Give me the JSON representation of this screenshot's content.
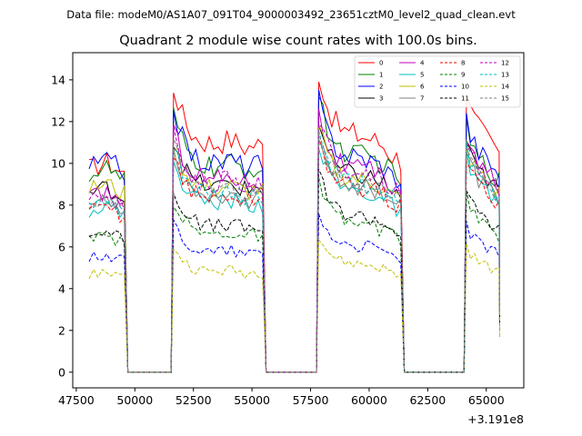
{
  "chart_data": {
    "type": "line",
    "suptitle": "Data file: modeM0/AS1A07_091T04_9000003492_23651cztM0_level2_quad_clean.evt",
    "title": "Quadrant 2 module wise count rates with 100.0s bins.",
    "xlabel": "",
    "ylabel": "",
    "x_offset_label": "+3.191e8",
    "xlim": [
      47350,
      66600
    ],
    "ylim": [
      -0.75,
      15.3
    ],
    "xticks": [
      47500,
      50000,
      52500,
      55000,
      57500,
      60000,
      62500,
      65000
    ],
    "xtick_labels": [
      "47500",
      "50000",
      "52500",
      "55000",
      "57500",
      "60000",
      "62500",
      "65000"
    ],
    "yticks": [
      0,
      2,
      4,
      6,
      8,
      10,
      12,
      14
    ],
    "ytick_labels": [
      "0",
      "2",
      "4",
      "6",
      "8",
      "10",
      "12",
      "14"
    ],
    "legend_position": "top-right",
    "segments": [
      [
        48050,
        49550
      ],
      [
        51650,
        55450
      ],
      [
        57850,
        61350
      ],
      [
        64150,
        65550
      ]
    ],
    "segment_profiles": [
      [
        1.0,
        1.0,
        1.01,
        1.02,
        1.03,
        1.01,
        1.0,
        0.98,
        0.97
      ],
      [
        1.18,
        1.12,
        1.06,
        1.02,
        0.99,
        0.97,
        0.96,
        0.95,
        0.95,
        0.94,
        0.95,
        0.95,
        0.96,
        0.96,
        0.95,
        0.94,
        0.93,
        0.93,
        0.94,
        0.94,
        0.93
      ],
      [
        1.22,
        1.14,
        1.08,
        1.04,
        1.01,
        0.99,
        0.98,
        0.97,
        0.97,
        0.96,
        0.96,
        0.95,
        0.95,
        0.94,
        0.93,
        0.92,
        0.9,
        0.88,
        0.87,
        0.86
      ],
      [
        1.15,
        1.07,
        1.03,
        1.0,
        0.98,
        0.96,
        0.94,
        0.92,
        0.9
      ]
    ],
    "series": [
      {
        "name": "0",
        "color": "#ff0000",
        "dash": false,
        "levels": [
          9.8,
          11.6,
          11.8,
          11.7
        ]
      },
      {
        "name": "1",
        "color": "#008000",
        "dash": false,
        "levels": [
          9.5,
          10.4,
          10.8,
          10.2
        ]
      },
      {
        "name": "2",
        "color": "#0000ff",
        "dash": false,
        "levels": [
          9.9,
          10.6,
          10.7,
          10.6
        ]
      },
      {
        "name": "3",
        "color": "#000000",
        "dash": false,
        "levels": [
          8.6,
          9.4,
          9.8,
          9.6
        ]
      },
      {
        "name": "4",
        "color": "#bf00bf",
        "dash": false,
        "levels": [
          8.4,
          9.8,
          10.1,
          9.9
        ]
      },
      {
        "name": "5",
        "color": "#00bfbf",
        "dash": false,
        "levels": [
          7.8,
          8.6,
          9.0,
          8.9
        ]
      },
      {
        "name": "6",
        "color": "#bfbf00",
        "dash": false,
        "levels": [
          8.8,
          9.3,
          9.6,
          9.5
        ]
      },
      {
        "name": "7",
        "color": "#808080",
        "dash": false,
        "levels": [
          8.1,
          8.9,
          9.3,
          9.2
        ]
      },
      {
        "name": "8",
        "color": "#ff0000",
        "dash": true,
        "levels": [
          7.7,
          8.8,
          9.2,
          9.0
        ]
      },
      {
        "name": "9",
        "color": "#008000",
        "dash": true,
        "levels": [
          6.3,
          7.0,
          7.4,
          7.3
        ]
      },
      {
        "name": "10",
        "color": "#0000ff",
        "dash": true,
        "levels": [
          5.5,
          6.1,
          6.3,
          6.2
        ]
      },
      {
        "name": "11",
        "color": "#000000",
        "dash": true,
        "levels": [
          6.6,
          7.4,
          7.8,
          7.6
        ]
      },
      {
        "name": "12",
        "color": "#bf00bf",
        "dash": true,
        "levels": [
          8.2,
          9.6,
          10.0,
          9.8
        ]
      },
      {
        "name": "13",
        "color": "#00bfbf",
        "dash": true,
        "levels": [
          7.9,
          9.0,
          9.4,
          9.3
        ]
      },
      {
        "name": "14",
        "color": "#bfbf00",
        "dash": true,
        "levels": [
          4.7,
          5.1,
          5.4,
          5.3
        ]
      },
      {
        "name": "15",
        "color": "#808080",
        "dash": true,
        "levels": [
          8.0,
          9.2,
          9.5,
          9.4
        ]
      }
    ]
  }
}
